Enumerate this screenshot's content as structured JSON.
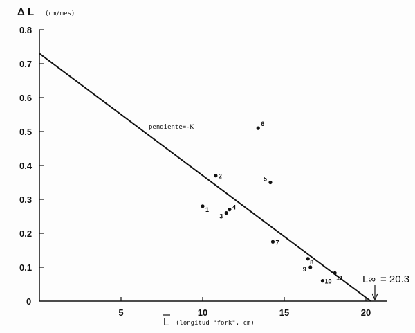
{
  "chart_data": {
    "type": "scatter",
    "ylabel_symbol": "Δ L",
    "ylabel_unit": "(cm/mes)",
    "xlabel_symbol": "L",
    "xlabel_unit": "(longitud \"fork\", cm)",
    "xlim": [
      0,
      22
    ],
    "ylim": [
      0,
      0.8
    ],
    "xticks": [
      "5",
      "10",
      "15",
      "20"
    ],
    "yticks": [
      "0",
      "0.1",
      "0.2",
      "0.3",
      "0.4",
      "0.5",
      "0.6",
      "0.7",
      "0.8"
    ],
    "points": [
      {
        "label": "1",
        "x": 10.0,
        "y": 0.28
      },
      {
        "label": "2",
        "x": 10.8,
        "y": 0.37
      },
      {
        "label": "3",
        "x": 11.45,
        "y": 0.26
      },
      {
        "label": "4",
        "x": 11.65,
        "y": 0.27
      },
      {
        "label": "5",
        "x": 14.15,
        "y": 0.35
      },
      {
        "label": "6",
        "x": 13.4,
        "y": 0.51
      },
      {
        "label": "7",
        "x": 14.3,
        "y": 0.175
      },
      {
        "label": "8",
        "x": 16.45,
        "y": 0.125
      },
      {
        "label": "9",
        "x": 16.6,
        "y": 0.1
      },
      {
        "label": "10",
        "x": 17.35,
        "y": 0.06
      },
      {
        "label": "11",
        "x": 18.1,
        "y": 0.083
      }
    ],
    "regression_line": {
      "intercept": 0.73,
      "x_intercept": 20.3,
      "label": "pendiente=-K"
    },
    "annotation": {
      "symbol": "L∞",
      "value": "= 20.3"
    },
    "grid": false
  }
}
